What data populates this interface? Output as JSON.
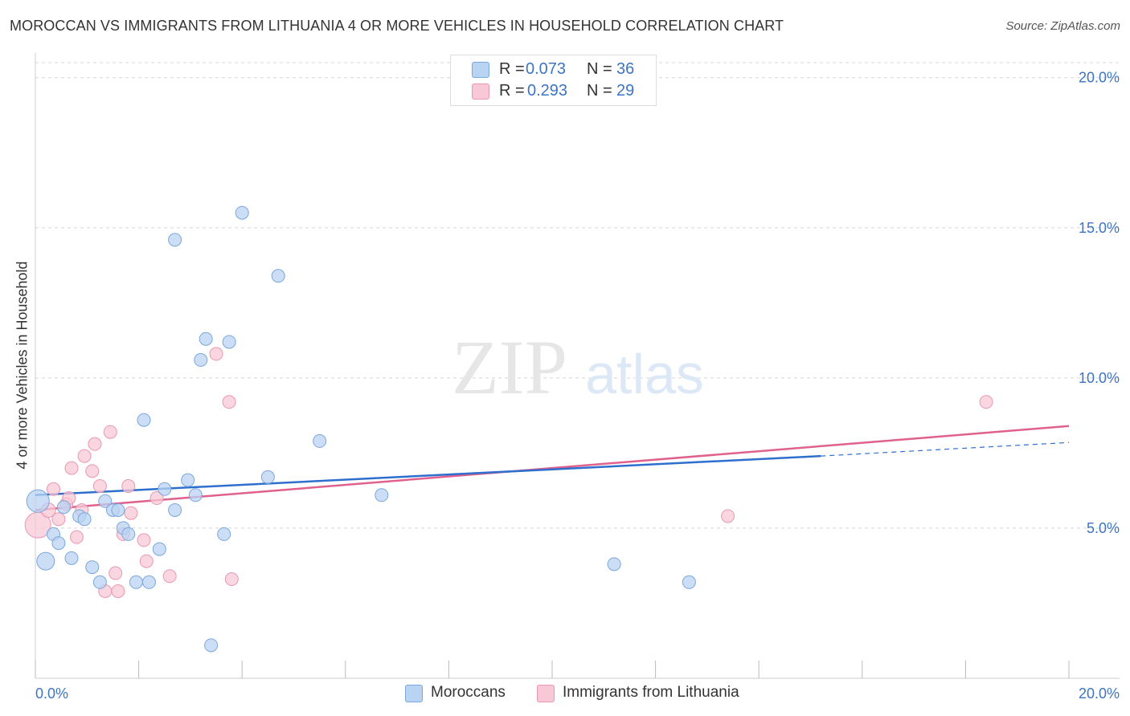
{
  "title": "MOROCCAN VS IMMIGRANTS FROM LITHUANIA 4 OR MORE VEHICLES IN HOUSEHOLD CORRELATION CHART",
  "source": "Source: ZipAtlas.com",
  "watermark": {
    "zip": "ZIP",
    "atlas": "atlas"
  },
  "colors": {
    "blue_fill": "#b9d3f3",
    "blue_stroke": "#7aa7dc",
    "blue_line": "#2e6fce",
    "pink_fill": "#f8c8d6",
    "pink_stroke": "#e898b2",
    "pink_line": "#e0608e",
    "axis_text": "#3d74c4",
    "grid": "#d8d8d8"
  },
  "legend_top": [
    {
      "r_label": "R =",
      "r_value": "0.073",
      "n_label": "N =",
      "n_value": "36"
    },
    {
      "r_label": "R =",
      "r_value": "0.293",
      "n_label": "N =",
      "n_value": "29"
    }
  ],
  "legend_bottom": [
    {
      "label": "Moroccans"
    },
    {
      "label": "Immigrants from Lithuania"
    }
  ],
  "chart_data": {
    "type": "scatter",
    "title": "MOROCCAN VS IMMIGRANTS FROM LITHUANIA 4 OR MORE VEHICLES IN HOUSEHOLD CORRELATION CHART",
    "xlabel": "",
    "ylabel": "4 or more Vehicles in Household",
    "xlim": [
      0,
      20
    ],
    "ylim": [
      0,
      20.5
    ],
    "x_tick_labels": [
      "0.0%",
      "20.0%"
    ],
    "y_tick_values": [
      5,
      10,
      15,
      20
    ],
    "y_tick_labels": [
      "5.0%",
      "10.0%",
      "15.0%",
      "20.0%"
    ],
    "series": [
      {
        "name": "Moroccans",
        "r": 0.073,
        "n": 36,
        "trend": {
          "x0": 0,
          "y0": 6.1,
          "x1": 15.2,
          "y1": 7.4,
          "dash_to_x": 20,
          "dash_to_y": 7.85
        },
        "points": [
          {
            "x": 0.05,
            "y": 5.9,
            "s": 14
          },
          {
            "x": 0.2,
            "y": 3.9,
            "s": 11
          },
          {
            "x": 0.35,
            "y": 4.8,
            "s": 8
          },
          {
            "x": 0.45,
            "y": 4.5,
            "s": 8
          },
          {
            "x": 0.55,
            "y": 5.7,
            "s": 8
          },
          {
            "x": 0.7,
            "y": 4.0,
            "s": 8
          },
          {
            "x": 0.85,
            "y": 5.4,
            "s": 8
          },
          {
            "x": 0.95,
            "y": 5.3,
            "s": 8
          },
          {
            "x": 1.1,
            "y": 3.7,
            "s": 8
          },
          {
            "x": 1.25,
            "y": 3.2,
            "s": 8
          },
          {
            "x": 1.35,
            "y": 5.9,
            "s": 8
          },
          {
            "x": 1.5,
            "y": 5.6,
            "s": 8
          },
          {
            "x": 1.6,
            "y": 5.6,
            "s": 8
          },
          {
            "x": 1.7,
            "y": 5.0,
            "s": 8
          },
          {
            "x": 1.8,
            "y": 4.8,
            "s": 8
          },
          {
            "x": 1.95,
            "y": 3.2,
            "s": 8
          },
          {
            "x": 2.1,
            "y": 8.6,
            "s": 8
          },
          {
            "x": 2.2,
            "y": 3.2,
            "s": 8
          },
          {
            "x": 2.4,
            "y": 4.3,
            "s": 8
          },
          {
            "x": 2.5,
            "y": 6.3,
            "s": 8
          },
          {
            "x": 2.7,
            "y": 14.6,
            "s": 8
          },
          {
            "x": 2.7,
            "y": 5.6,
            "s": 8
          },
          {
            "x": 2.95,
            "y": 6.6,
            "s": 8
          },
          {
            "x": 3.1,
            "y": 6.1,
            "s": 8
          },
          {
            "x": 3.2,
            "y": 10.6,
            "s": 8
          },
          {
            "x": 3.3,
            "y": 11.3,
            "s": 8
          },
          {
            "x": 3.4,
            "y": 1.1,
            "s": 8
          },
          {
            "x": 3.65,
            "y": 4.8,
            "s": 8
          },
          {
            "x": 3.75,
            "y": 11.2,
            "s": 8
          },
          {
            "x": 4.0,
            "y": 15.5,
            "s": 8
          },
          {
            "x": 4.5,
            "y": 6.7,
            "s": 8
          },
          {
            "x": 4.7,
            "y": 13.4,
            "s": 8
          },
          {
            "x": 5.5,
            "y": 7.9,
            "s": 8
          },
          {
            "x": 6.7,
            "y": 6.1,
            "s": 8
          },
          {
            "x": 11.2,
            "y": 3.8,
            "s": 8
          },
          {
            "x": 12.65,
            "y": 3.2,
            "s": 8
          }
        ]
      },
      {
        "name": "Immigrants from Lithuania",
        "r": 0.293,
        "n": 29,
        "trend": {
          "x0": 0,
          "y0": 5.6,
          "x1": 20,
          "y1": 8.4
        },
        "points": [
          {
            "x": 0.05,
            "y": 5.1,
            "s": 16
          },
          {
            "x": 0.25,
            "y": 5.6,
            "s": 9
          },
          {
            "x": 0.35,
            "y": 6.3,
            "s": 8
          },
          {
            "x": 0.45,
            "y": 5.3,
            "s": 8
          },
          {
            "x": 0.6,
            "y": 5.8,
            "s": 8
          },
          {
            "x": 0.65,
            "y": 6.0,
            "s": 8
          },
          {
            "x": 0.7,
            "y": 7.0,
            "s": 8
          },
          {
            "x": 0.8,
            "y": 4.7,
            "s": 8
          },
          {
            "x": 0.9,
            "y": 5.6,
            "s": 8
          },
          {
            "x": 0.95,
            "y": 7.4,
            "s": 8
          },
          {
            "x": 1.1,
            "y": 6.9,
            "s": 8
          },
          {
            "x": 1.15,
            "y": 7.8,
            "s": 8
          },
          {
            "x": 1.25,
            "y": 6.4,
            "s": 8
          },
          {
            "x": 1.35,
            "y": 2.9,
            "s": 8
          },
          {
            "x": 1.45,
            "y": 8.2,
            "s": 8
          },
          {
            "x": 1.55,
            "y": 3.5,
            "s": 8
          },
          {
            "x": 1.6,
            "y": 2.9,
            "s": 8
          },
          {
            "x": 1.7,
            "y": 4.8,
            "s": 8
          },
          {
            "x": 1.8,
            "y": 6.4,
            "s": 8
          },
          {
            "x": 1.85,
            "y": 5.5,
            "s": 8
          },
          {
            "x": 2.1,
            "y": 4.6,
            "s": 8
          },
          {
            "x": 2.15,
            "y": 3.9,
            "s": 8
          },
          {
            "x": 2.35,
            "y": 6.0,
            "s": 8
          },
          {
            "x": 2.6,
            "y": 3.4,
            "s": 8
          },
          {
            "x": 3.5,
            "y": 10.8,
            "s": 8
          },
          {
            "x": 3.75,
            "y": 9.2,
            "s": 8
          },
          {
            "x": 3.8,
            "y": 3.3,
            "s": 8
          },
          {
            "x": 13.4,
            "y": 5.4,
            "s": 8
          },
          {
            "x": 18.4,
            "y": 9.2,
            "s": 8
          }
        ]
      }
    ]
  }
}
